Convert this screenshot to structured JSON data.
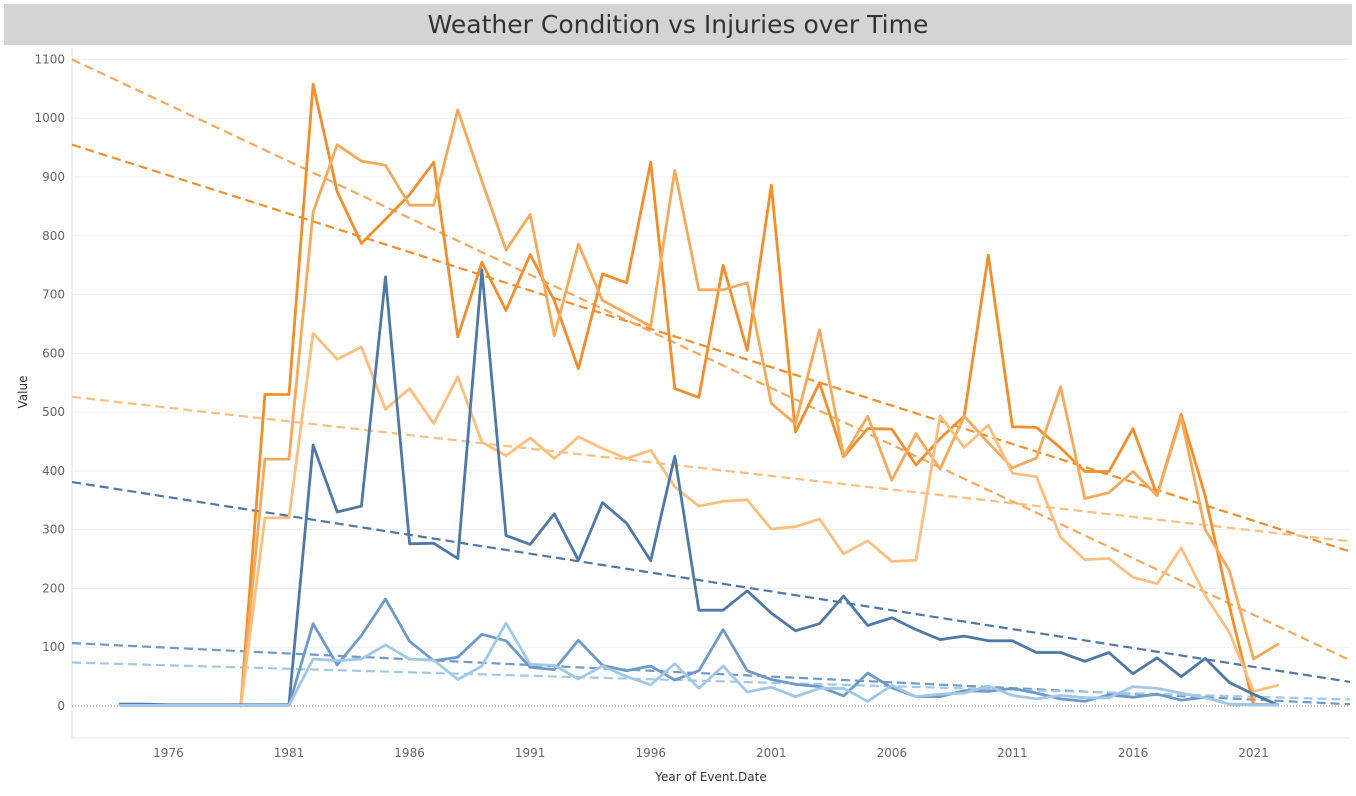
{
  "chart_data": {
    "type": "line",
    "title": "Weather Condition vs Injuries over Time",
    "xlabel": "Year of Event.Date",
    "ylabel": "Value",
    "xlim": [
      1972,
      2025
    ],
    "ylim": [
      -55,
      1100
    ],
    "x_ticks": [
      1976,
      1981,
      1986,
      1991,
      1996,
      2001,
      2006,
      2011,
      2016,
      2021
    ],
    "y_ticks": [
      0,
      100,
      200,
      300,
      400,
      500,
      600,
      700,
      800,
      900,
      1000,
      1100
    ],
    "grid": true,
    "x": [
      1974,
      1975,
      1976,
      1977,
      1978,
      1979,
      1980,
      1981,
      1982,
      1983,
      1984,
      1985,
      1986,
      1987,
      1988,
      1989,
      1990,
      1991,
      1992,
      1993,
      1994,
      1995,
      1996,
      1997,
      1998,
      1999,
      2000,
      2001,
      2002,
      2003,
      2004,
      2005,
      2006,
      2007,
      2008,
      2009,
      2010,
      2011,
      2012,
      2013,
      2014,
      2015,
      2016,
      2017,
      2018,
      2019,
      2020,
      2021,
      2022
    ],
    "series": [
      {
        "color": "#f28e2b",
        "values": [
          null,
          null,
          null,
          null,
          null,
          0,
          530,
          530,
          1058,
          875,
          787,
          828,
          870,
          925,
          628,
          755,
          673,
          768,
          690,
          574,
          735,
          720,
          925,
          540,
          525,
          750,
          605,
          886,
          466,
          550,
          424,
          472,
          471,
          410,
          455,
          493,
          767,
          475,
          474,
          439,
          399,
          399,
          472,
          359,
          496,
          357,
          170,
          3,
          2
        ]
      },
      {
        "color": "#f5a95a",
        "values": [
          null,
          null,
          null,
          null,
          null,
          0,
          420,
          420,
          840,
          955,
          927,
          920,
          852,
          852,
          1014,
          893,
          776,
          836,
          630,
          786,
          690,
          668,
          646,
          911,
          708,
          708,
          720,
          515,
          480,
          640,
          425,
          493,
          384,
          463,
          403,
          493,
          448,
          405,
          422,
          543,
          353,
          363,
          399,
          358,
          491,
          300,
          230,
          80,
          105
        ]
      },
      {
        "color": "#fbbf80",
        "values": [
          null,
          null,
          null,
          null,
          null,
          0,
          320,
          320,
          634,
          590,
          611,
          505,
          540,
          481,
          560,
          449,
          426,
          456,
          421,
          458,
          438,
          421,
          435,
          373,
          340,
          348,
          351,
          301,
          305,
          318,
          259,
          281,
          246,
          248,
          494,
          440,
          478,
          396,
          390,
          287,
          249,
          251,
          219,
          208,
          269,
          188,
          125,
          25,
          35
        ]
      },
      {
        "color": "#4e79a7",
        "values": [
          3,
          3,
          2,
          2,
          2,
          2,
          2,
          2,
          444,
          330,
          340,
          730,
          276,
          277,
          251,
          742,
          290,
          275,
          327,
          248,
          346,
          311,
          247,
          425,
          163,
          163,
          196,
          158,
          128,
          140,
          187,
          137,
          150,
          130,
          113,
          119,
          111,
          111,
          91,
          91,
          76,
          91,
          55,
          82,
          50,
          81,
          40,
          20,
          2
        ]
      },
      {
        "color": "#6d9ac7",
        "values": [
          1,
          1,
          1,
          1,
          1,
          1,
          1,
          1,
          140,
          70,
          120,
          182,
          110,
          77,
          83,
          122,
          111,
          66,
          62,
          112,
          69,
          60,
          68,
          44,
          60,
          130,
          60,
          45,
          37,
          33,
          17,
          56,
          31,
          16,
          16,
          26,
          25,
          30,
          22,
          12,
          8,
          19,
          15,
          20,
          10,
          15,
          3,
          2,
          2
        ]
      },
      {
        "color": "#a0c8e7",
        "values": [
          1,
          1,
          1,
          1,
          1,
          1,
          1,
          1,
          80,
          77,
          80,
          104,
          80,
          78,
          45,
          68,
          141,
          71,
          69,
          46,
          68,
          50,
          36,
          72,
          30,
          68,
          24,
          32,
          16,
          30,
          30,
          8,
          35,
          16,
          20,
          22,
          34,
          18,
          12,
          18,
          14,
          14,
          33,
          30,
          22,
          14,
          3,
          2,
          2
        ]
      }
    ],
    "trendlines": [
      {
        "color": "#f28e2b",
        "x": [
          1972,
          2025
        ],
        "y": [
          955,
          263
        ]
      },
      {
        "color": "#f5a95a",
        "x": [
          1972,
          2025
        ],
        "y": [
          1100,
          78
        ]
      },
      {
        "color": "#fbbf80",
        "x": [
          1972,
          2025
        ],
        "y": [
          526,
          280
        ]
      },
      {
        "color": "#4e79a7",
        "x": [
          1972,
          2025
        ],
        "y": [
          381,
          41
        ]
      },
      {
        "color": "#6d9ac7",
        "x": [
          1972,
          2025
        ],
        "y": [
          107,
          3
        ]
      },
      {
        "color": "#a0c8e7",
        "x": [
          1972,
          2025
        ],
        "y": [
          74,
          11
        ]
      }
    ]
  }
}
